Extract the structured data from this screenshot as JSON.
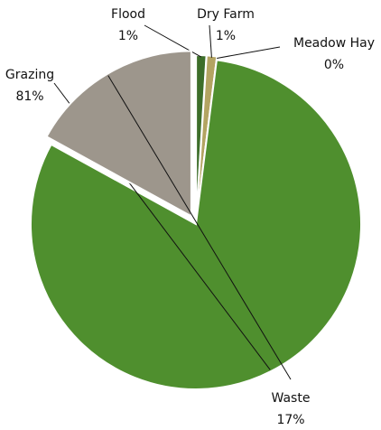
{
  "chart_data": {
    "type": "pie",
    "categories": [
      "Flood",
      "Dry Farm",
      "Meadow Hay",
      "Grazing",
      "Waste"
    ],
    "values": [
      1,
      1,
      0,
      81,
      17
    ],
    "value_labels": [
      "1%",
      "1%",
      "0%",
      "81%",
      "17%"
    ],
    "colors": [
      "#3d6e2a",
      "#b3a462",
      "#cdbd78",
      "#4f8f2e",
      "#9d968c"
    ]
  }
}
